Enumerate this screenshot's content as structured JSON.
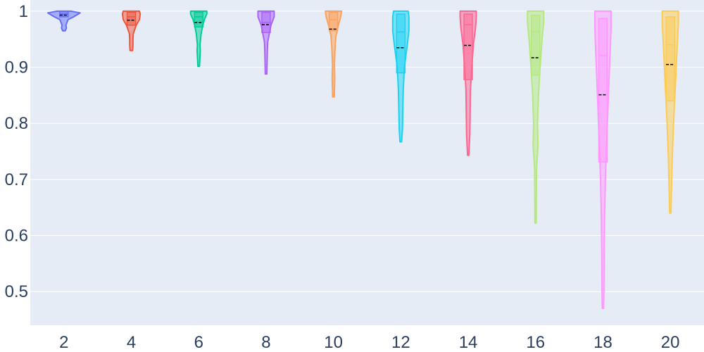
{
  "chart_data": {
    "type": "violin",
    "title": "",
    "xlabel": "",
    "ylabel": "",
    "xlim": [
      1,
      21
    ],
    "ylim": [
      0.44,
      1.02
    ],
    "x_ticks": [
      "2",
      "4",
      "6",
      "8",
      "10",
      "12",
      "14",
      "16",
      "18",
      "20"
    ],
    "y_ticks": [
      {
        "value": 0.5,
        "label": "0.5"
      },
      {
        "value": 0.6,
        "label": "0.6"
      },
      {
        "value": 0.7,
        "label": "0.7"
      },
      {
        "value": 0.8,
        "label": "0.8"
      },
      {
        "value": 0.9,
        "label": "0.9"
      },
      {
        "value": 1.0,
        "label": "1"
      }
    ],
    "grid": true,
    "series": [
      {
        "x": 2,
        "color": "#636efa",
        "min": 0.965,
        "q1": 0.99,
        "median": 0.995,
        "q3": 1.0,
        "max": 1.0,
        "mean": 0.993,
        "profile": [
          [
            1.0,
            0.45
          ],
          [
            0.997,
            1.0
          ],
          [
            0.99,
            0.6
          ],
          [
            0.985,
            0.25
          ],
          [
            0.975,
            0.12
          ],
          [
            0.97,
            0.15
          ],
          [
            0.965,
            0.08
          ]
        ]
      },
      {
        "x": 4,
        "color": "#ef553b",
        "min": 0.928,
        "q1": 0.975,
        "median": 0.99,
        "q3": 0.998,
        "max": 1.0,
        "mean": 0.984,
        "profile": [
          [
            1.0,
            0.5
          ],
          [
            0.995,
            0.55
          ],
          [
            0.985,
            0.5
          ],
          [
            0.975,
            0.3
          ],
          [
            0.96,
            0.12
          ],
          [
            0.95,
            0.1
          ],
          [
            0.94,
            0.1
          ],
          [
            0.93,
            0.08
          ]
        ]
      },
      {
        "x": 6,
        "color": "#00cc96",
        "min": 0.902,
        "q1": 0.972,
        "median": 0.99,
        "q3": 0.998,
        "max": 1.0,
        "mean": 0.98,
        "profile": [
          [
            1.0,
            0.5
          ],
          [
            0.995,
            0.5
          ],
          [
            0.985,
            0.35
          ],
          [
            0.975,
            0.25
          ],
          [
            0.96,
            0.15
          ],
          [
            0.94,
            0.08
          ],
          [
            0.93,
            0.1
          ],
          [
            0.915,
            0.07
          ],
          [
            0.902,
            0.05
          ]
        ]
      },
      {
        "x": 8,
        "color": "#ab63fa",
        "min": 0.888,
        "q1": 0.962,
        "median": 0.98,
        "q3": 0.998,
        "max": 1.0,
        "mean": 0.976,
        "profile": [
          [
            1.0,
            0.5
          ],
          [
            0.99,
            0.5
          ],
          [
            0.975,
            0.3
          ],
          [
            0.96,
            0.2
          ],
          [
            0.945,
            0.1
          ],
          [
            0.93,
            0.08
          ],
          [
            0.905,
            0.06
          ],
          [
            0.888,
            0.05
          ]
        ]
      },
      {
        "x": 10,
        "color": "#ffa15a",
        "min": 0.847,
        "q1": 0.965,
        "median": 0.985,
        "q3": 0.998,
        "max": 1.0,
        "mean": 0.968,
        "profile": [
          [
            1.0,
            0.5
          ],
          [
            0.99,
            0.45
          ],
          [
            0.975,
            0.3
          ],
          [
            0.955,
            0.15
          ],
          [
            0.935,
            0.1
          ],
          [
            0.905,
            0.06
          ],
          [
            0.88,
            0.08
          ],
          [
            0.86,
            0.06
          ],
          [
            0.847,
            0.05
          ]
        ]
      },
      {
        "x": 12,
        "color": "#19d3f3",
        "min": 0.767,
        "q1": 0.89,
        "median": 0.963,
        "q3": 0.995,
        "max": 1.0,
        "mean": 0.935,
        "profile": [
          [
            1.0,
            0.45
          ],
          [
            0.99,
            0.5
          ],
          [
            0.965,
            0.5
          ],
          [
            0.94,
            0.4
          ],
          [
            0.9,
            0.22
          ],
          [
            0.86,
            0.15
          ],
          [
            0.82,
            0.12
          ],
          [
            0.79,
            0.1
          ],
          [
            0.767,
            0.05
          ]
        ]
      },
      {
        "x": 14,
        "color": "#ff6692",
        "min": 0.743,
        "q1": 0.878,
        "median": 0.976,
        "q3": 0.995,
        "max": 1.0,
        "mean": 0.939,
        "profile": [
          [
            1.0,
            0.5
          ],
          [
            0.99,
            0.5
          ],
          [
            0.97,
            0.45
          ],
          [
            0.94,
            0.32
          ],
          [
            0.9,
            0.22
          ],
          [
            0.86,
            0.14
          ],
          [
            0.82,
            0.12
          ],
          [
            0.78,
            0.1
          ],
          [
            0.743,
            0.04
          ]
        ]
      },
      {
        "x": 16,
        "color": "#b6e880",
        "min": 0.622,
        "q1": 0.886,
        "median": 0.963,
        "q3": 0.993,
        "max": 1.0,
        "mean": 0.917,
        "profile": [
          [
            1.0,
            0.5
          ],
          [
            0.98,
            0.5
          ],
          [
            0.95,
            0.4
          ],
          [
            0.9,
            0.28
          ],
          [
            0.85,
            0.18
          ],
          [
            0.8,
            0.12
          ],
          [
            0.76,
            0.15
          ],
          [
            0.72,
            0.06
          ],
          [
            0.68,
            0.05
          ],
          [
            0.622,
            0.04
          ]
        ]
      },
      {
        "x": 18,
        "color": "#ff97ff",
        "min": 0.47,
        "q1": 0.731,
        "median": 0.921,
        "q3": 0.987,
        "max": 1.0,
        "mean": 0.851,
        "profile": [
          [
            1.0,
            0.5
          ],
          [
            0.97,
            0.5
          ],
          [
            0.93,
            0.45
          ],
          [
            0.88,
            0.38
          ],
          [
            0.82,
            0.3
          ],
          [
            0.76,
            0.22
          ],
          [
            0.7,
            0.15
          ],
          [
            0.63,
            0.1
          ],
          [
            0.56,
            0.07
          ],
          [
            0.5,
            0.06
          ],
          [
            0.47,
            0.04
          ]
        ]
      },
      {
        "x": 20,
        "color": "#fecb52",
        "min": 0.64,
        "q1": 0.84,
        "median": 0.94,
        "q3": 0.99,
        "max": 1.0,
        "mean": 0.905,
        "profile": [
          [
            1.0,
            0.5
          ],
          [
            0.98,
            0.5
          ],
          [
            0.95,
            0.45
          ],
          [
            0.91,
            0.38
          ],
          [
            0.86,
            0.3
          ],
          [
            0.8,
            0.2
          ],
          [
            0.74,
            0.12
          ],
          [
            0.68,
            0.07
          ],
          [
            0.64,
            0.04
          ]
        ]
      }
    ]
  }
}
